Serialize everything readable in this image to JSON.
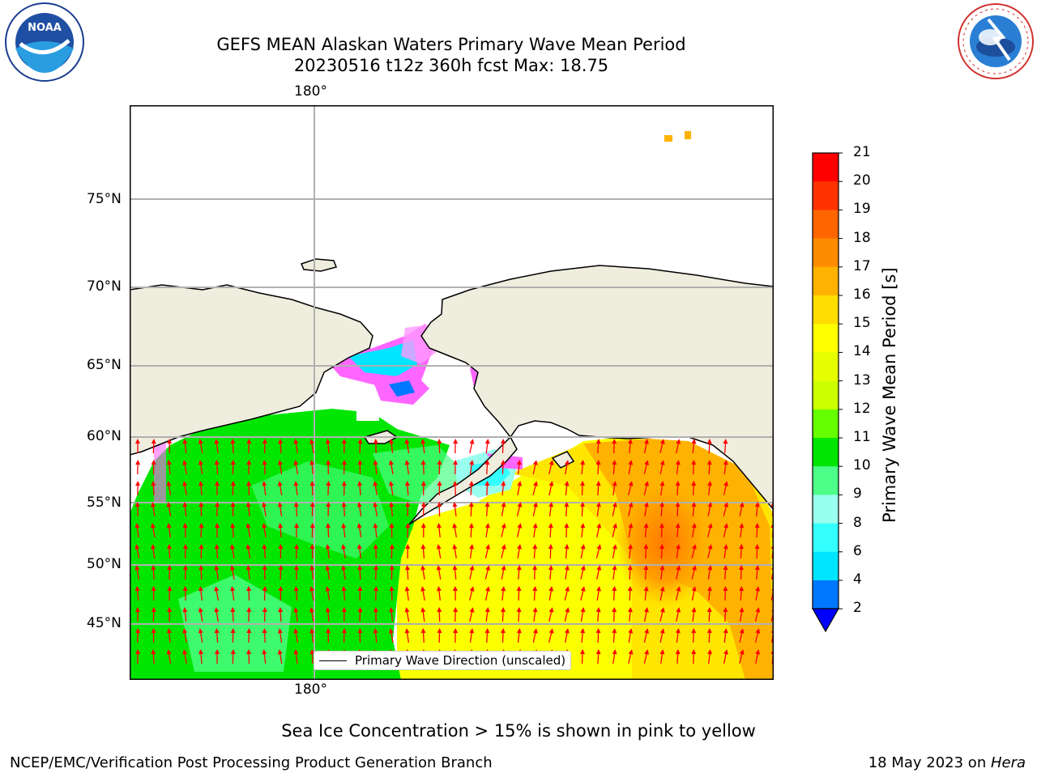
{
  "header": {
    "title_line1": "GEFS MEAN Alaskan Waters Primary Wave Mean Period",
    "title_line2": "20230516 t12z 360h fcst   Max: 18.75"
  },
  "logos": {
    "left": {
      "text": "NOAA",
      "ring_text": "NATIONAL OCEANIC AND ATMOSPHERIC ADMINISTRATION · U.S. DEPARTMENT OF COMMERCE"
    },
    "right": {
      "ring_text": "NATIONAL WEATHER SERVICE"
    }
  },
  "map": {
    "lon_labels": [
      "180°",
      "180°"
    ],
    "lat_labels": [
      "75°N",
      "70°N",
      "65°N",
      "60°N",
      "55°N",
      "50°N",
      "45°N"
    ],
    "legend_label": "Primary Wave Direction (unscaled)",
    "colors": {
      "land": "#efedde",
      "ice_pink": "#ff66ff",
      "arrow": "#ff0000"
    }
  },
  "colorbar": {
    "title": "Primary Wave Mean Period [s]",
    "ticks": [
      "21",
      "20",
      "19",
      "18",
      "17",
      "16",
      "15",
      "14",
      "13",
      "12",
      "11",
      "10",
      "9",
      "8",
      "6",
      "4",
      "2"
    ],
    "colors": [
      "#ff0000",
      "#ff3300",
      "#ff6600",
      "#ff8c00",
      "#ffb300",
      "#ffdd00",
      "#ffff00",
      "#e6ff00",
      "#ccff00",
      "#66ff00",
      "#00e600",
      "#4dff88",
      "#99ffee",
      "#33ffff",
      "#00e5ff",
      "#0077ff",
      "#0000ff"
    ]
  },
  "caption": "Sea Ice Concentration > 15% is shown in pink to yellow",
  "footer": {
    "left": "NCEP/EMC/Verification Post Processing Product Generation Branch",
    "right_prefix": "18 May 2023 on ",
    "right_machine": "Hera"
  }
}
